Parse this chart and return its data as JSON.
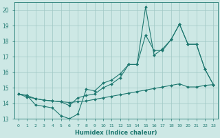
{
  "xlabel": "Humidex (Indice chaleur)",
  "background_color": "#cde8e5",
  "grid_color": "#a0c8c5",
  "line_color": "#1e7870",
  "xlim_min": -0.5,
  "xlim_max": 23.5,
  "ylim_min": 13,
  "ylim_max": 20.5,
  "yticks": [
    13,
    14,
    15,
    16,
    17,
    18,
    19,
    20
  ],
  "xticks": [
    0,
    1,
    2,
    3,
    4,
    5,
    6,
    7,
    8,
    9,
    10,
    11,
    12,
    13,
    14,
    15,
    16,
    17,
    18,
    19,
    20,
    21,
    22,
    23
  ],
  "line1_x": [
    0,
    1,
    2,
    3,
    4,
    5,
    6,
    7,
    8,
    9,
    10,
    11,
    12,
    13,
    14,
    15,
    16,
    17,
    18,
    19,
    20,
    21,
    22,
    23
  ],
  "line1_y": [
    14.6,
    14.5,
    13.9,
    13.8,
    13.7,
    13.2,
    13.0,
    13.3,
    14.9,
    14.8,
    15.3,
    15.5,
    15.9,
    16.5,
    16.5,
    20.2,
    17.1,
    17.5,
    18.1,
    19.1,
    17.8,
    17.8,
    16.2,
    15.2
  ],
  "line2_x": [
    0,
    1,
    2,
    3,
    4,
    5,
    6,
    7,
    8,
    9,
    10,
    11,
    12,
    13,
    14,
    15,
    16,
    17,
    18,
    19,
    20,
    21,
    22,
    23
  ],
  "line2_y": [
    14.6,
    14.5,
    14.3,
    14.2,
    14.15,
    14.1,
    13.85,
    14.35,
    14.5,
    14.6,
    15.0,
    15.25,
    15.65,
    16.5,
    16.5,
    18.4,
    17.4,
    17.4,
    18.1,
    19.1,
    17.8,
    17.8,
    16.2,
    15.2
  ],
  "line3_x": [
    0,
    1,
    2,
    3,
    4,
    5,
    6,
    7,
    8,
    9,
    10,
    11,
    12,
    13,
    14,
    15,
    16,
    17,
    18,
    19,
    20,
    21,
    22,
    23
  ],
  "line3_y": [
    14.6,
    14.4,
    14.3,
    14.2,
    14.15,
    14.1,
    14.05,
    14.1,
    14.15,
    14.25,
    14.35,
    14.45,
    14.55,
    14.65,
    14.75,
    14.85,
    14.95,
    15.05,
    15.15,
    15.25,
    15.05,
    15.05,
    15.15,
    15.2
  ]
}
